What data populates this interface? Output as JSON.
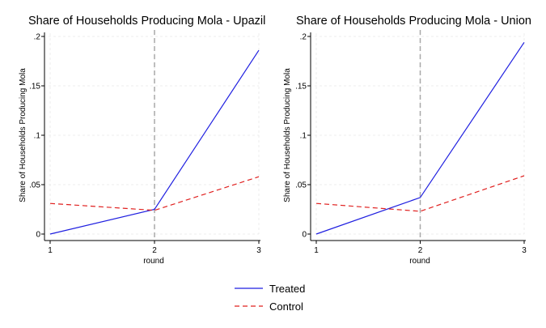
{
  "chart_data": [
    {
      "type": "line",
      "title": "Share of Households Producing Mola - Upazil",
      "xlabel": "round",
      "ylabel": "Share of Households Producing Mola",
      "x": [
        1,
        2,
        3
      ],
      "x_tick_labels": [
        "1",
        "2",
        "3"
      ],
      "xlim": [
        1,
        3
      ],
      "ylim": [
        0,
        0.2
      ],
      "y_ticks": [
        0,
        0.05,
        0.1,
        0.15,
        0.2
      ],
      "y_tick_labels": [
        "0",
        ".05",
        ".1",
        ".15",
        ".2"
      ],
      "grid": true,
      "vline_x": 2,
      "series": [
        {
          "name": "Treated",
          "values": [
            0.0,
            0.025,
            0.186
          ],
          "color": "#1f1fe0",
          "dash": "solid"
        },
        {
          "name": "Control",
          "values": [
            0.031,
            0.024,
            0.058
          ],
          "color": "#e0201f",
          "dash": "dashed"
        }
      ]
    },
    {
      "type": "line",
      "title": "Share of Households Producing Mola - Union",
      "xlabel": "round",
      "ylabel": "Share of Households Producing Mola",
      "x": [
        1,
        2,
        3
      ],
      "x_tick_labels": [
        "1",
        "2",
        "3"
      ],
      "xlim": [
        1,
        3
      ],
      "ylim": [
        0,
        0.2
      ],
      "y_ticks": [
        0,
        0.05,
        0.1,
        0.15,
        0.2
      ],
      "y_tick_labels": [
        "0",
        ".05",
        ".1",
        ".15",
        ".2"
      ],
      "grid": true,
      "vline_x": 2,
      "series": [
        {
          "name": "Treated",
          "values": [
            0.0,
            0.037,
            0.194
          ],
          "color": "#1f1fe0",
          "dash": "solid"
        },
        {
          "name": "Control",
          "values": [
            0.031,
            0.023,
            0.059
          ],
          "color": "#e0201f",
          "dash": "dashed"
        }
      ]
    }
  ],
  "legend": {
    "position": "bottom-center",
    "items": [
      {
        "label": "Treated",
        "color": "#1f1fe0",
        "dash": "solid"
      },
      {
        "label": "Control",
        "color": "#e0201f",
        "dash": "dashed"
      }
    ]
  }
}
